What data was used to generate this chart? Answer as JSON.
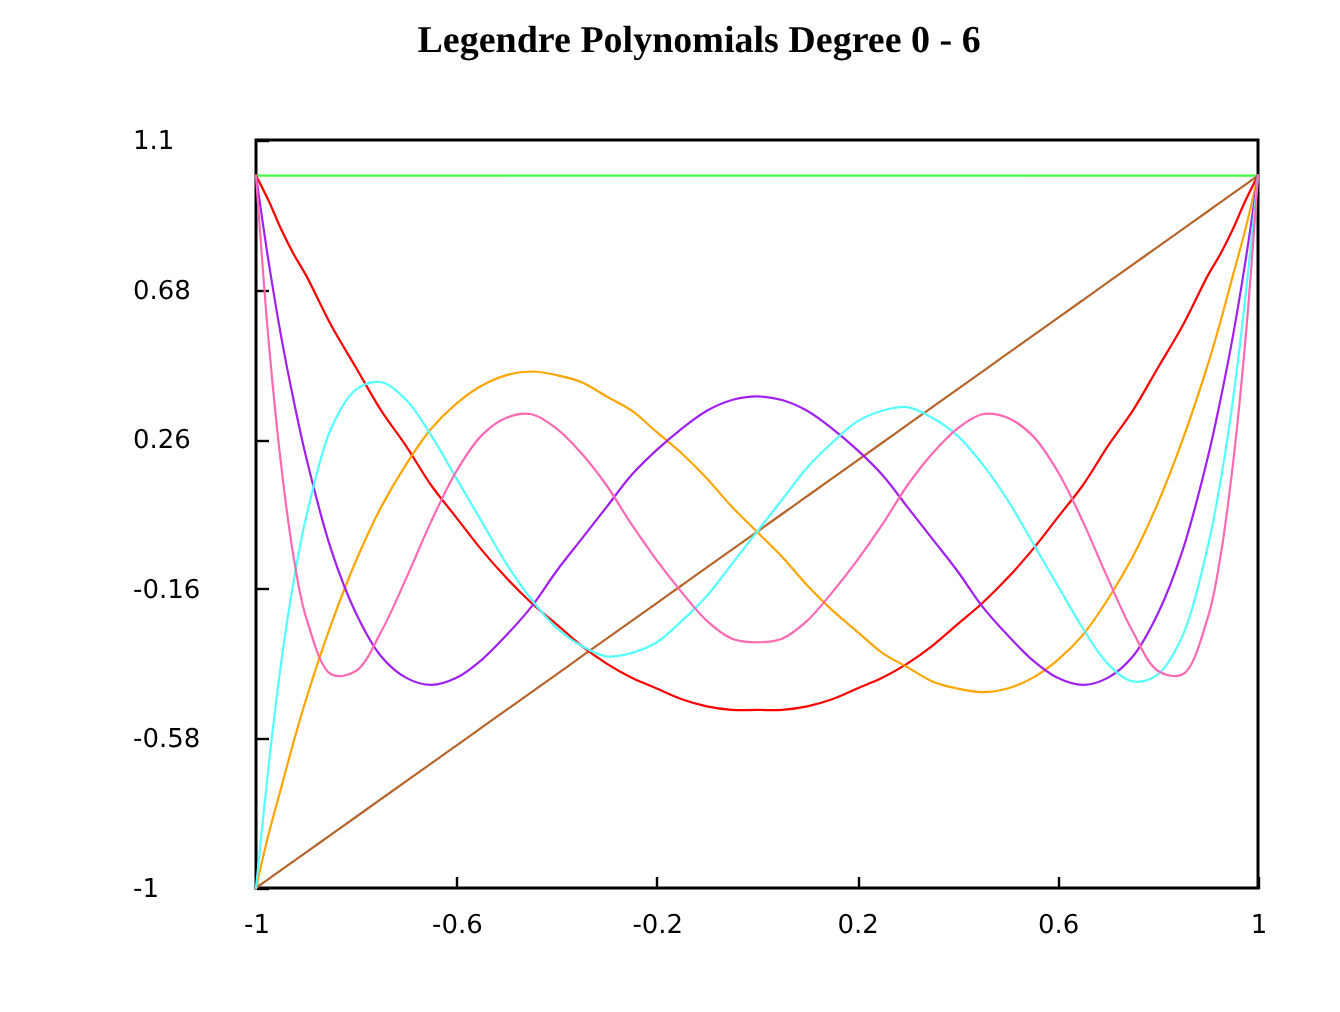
{
  "chart_data": {
    "type": "line",
    "title": "Legendre Polynomials Degree 0 - 6",
    "x": [
      -1,
      -0.975,
      -0.95,
      -0.925,
      -0.9,
      -0.85,
      -0.8,
      -0.75,
      -0.7,
      -0.65,
      -0.6,
      -0.55,
      -0.5,
      -0.45,
      -0.4,
      -0.35,
      -0.3,
      -0.25,
      -0.2,
      -0.15,
      -0.1,
      -0.05,
      0,
      0.05,
      0.1,
      0.15,
      0.2,
      0.25,
      0.3,
      0.35,
      0.4,
      0.45,
      0.5,
      0.55,
      0.6,
      0.65,
      0.7,
      0.75,
      0.8,
      0.85,
      0.9,
      0.925,
      0.95,
      0.975,
      1
    ],
    "series": [
      {
        "color": "#40ff40",
        "values": [
          1,
          1,
          1,
          1,
          1,
          1,
          1,
          1,
          1,
          1,
          1,
          1,
          1,
          1,
          1,
          1,
          1,
          1,
          1,
          1,
          1,
          1,
          1,
          1,
          1,
          1,
          1,
          1,
          1,
          1,
          1,
          1,
          1,
          1,
          1,
          1,
          1,
          1,
          1,
          1,
          1,
          1,
          1,
          1,
          1
        ]
      },
      {
        "color": "#b5652b",
        "values": [
          -1,
          -0.975,
          -0.95,
          -0.925,
          -0.9,
          -0.85,
          -0.8,
          -0.75,
          -0.7,
          -0.65,
          -0.6,
          -0.55,
          -0.5,
          -0.45,
          -0.4,
          -0.35,
          -0.3,
          -0.25,
          -0.2,
          -0.15,
          -0.1,
          -0.05,
          0,
          0.05,
          0.1,
          0.15,
          0.2,
          0.25,
          0.3,
          0.35,
          0.4,
          0.45,
          0.5,
          0.55,
          0.6,
          0.65,
          0.7,
          0.75,
          0.8,
          0.85,
          0.9,
          0.925,
          0.95,
          0.975,
          1
        ]
      },
      {
        "color": "#ff0000",
        "values": [
          1,
          0.93,
          0.85,
          0.78,
          0.72,
          0.58,
          0.46,
          0.34,
          0.24,
          0.13,
          0.04,
          -0.05,
          -0.13,
          -0.2,
          -0.26,
          -0.32,
          -0.37,
          -0.41,
          -0.44,
          -0.47,
          -0.49,
          -0.5,
          -0.5,
          -0.5,
          -0.49,
          -0.47,
          -0.44,
          -0.41,
          -0.37,
          -0.32,
          -0.26,
          -0.2,
          -0.13,
          -0.05,
          0.04,
          0.13,
          0.24,
          0.34,
          0.46,
          0.58,
          0.72,
          0.78,
          0.85,
          0.93,
          1
        ]
      },
      {
        "color": "#ffa500",
        "values": [
          -1,
          -0.85,
          -0.72,
          -0.59,
          -0.47,
          -0.26,
          -0.08,
          0.07,
          0.19,
          0.29,
          0.36,
          0.41,
          0.44,
          0.45,
          0.44,
          0.42,
          0.38,
          0.34,
          0.28,
          0.22,
          0.15,
          0.07,
          0,
          -0.07,
          -0.15,
          -0.22,
          -0.28,
          -0.34,
          -0.38,
          -0.42,
          -0.44,
          -0.45,
          -0.44,
          -0.41,
          -0.36,
          -0.29,
          -0.19,
          -0.07,
          0.08,
          0.26,
          0.47,
          0.59,
          0.72,
          0.85,
          1
        ]
      },
      {
        "color": "#a020f0",
        "values": [
          1,
          0.76,
          0.55,
          0.37,
          0.21,
          -0.05,
          -0.23,
          -0.35,
          -0.41,
          -0.43,
          -0.41,
          -0.36,
          -0.29,
          -0.21,
          -0.11,
          -0.02,
          0.07,
          0.16,
          0.23,
          0.29,
          0.34,
          0.37,
          0.38,
          0.37,
          0.34,
          0.29,
          0.23,
          0.16,
          0.07,
          -0.02,
          -0.11,
          -0.21,
          -0.29,
          -0.36,
          -0.41,
          -0.43,
          -0.41,
          -0.35,
          -0.23,
          -0.05,
          0.21,
          0.37,
          0.55,
          0.76,
          1
        ]
      },
      {
        "color": "#55ffff",
        "values": [
          -1,
          -0.66,
          -0.37,
          -0.14,
          0.04,
          0.29,
          0.4,
          0.42,
          0.37,
          0.27,
          0.15,
          0.03,
          -0.09,
          -0.19,
          -0.27,
          -0.32,
          -0.35,
          -0.34,
          -0.31,
          -0.25,
          -0.18,
          -0.09,
          0,
          0.09,
          0.18,
          0.25,
          0.31,
          0.34,
          0.35,
          0.32,
          0.27,
          0.19,
          0.09,
          -0.03,
          -0.15,
          -0.27,
          -0.37,
          -0.42,
          -0.4,
          -0.29,
          -0.04,
          0.14,
          0.37,
          0.66,
          1
        ]
      },
      {
        "color": "#ff69b4",
        "values": [
          1,
          0.54,
          0.19,
          -0.07,
          -0.24,
          -0.4,
          -0.39,
          -0.28,
          -0.13,
          0.03,
          0.17,
          0.27,
          0.32,
          0.33,
          0.29,
          0.22,
          0.13,
          0.02,
          -0.08,
          -0.17,
          -0.25,
          -0.3,
          -0.31,
          -0.3,
          -0.25,
          -0.17,
          -0.08,
          0.02,
          0.13,
          0.22,
          0.29,
          0.33,
          0.32,
          0.27,
          0.17,
          0.03,
          -0.13,
          -0.28,
          -0.39,
          -0.4,
          -0.24,
          -0.07,
          0.19,
          0.54,
          1
        ]
      }
    ],
    "xlim": [
      -1,
      1
    ],
    "ylim": [
      -1,
      1.1
    ],
    "xticks": [
      -1,
      -0.6,
      -0.2,
      0.2,
      0.6,
      1
    ],
    "yticks": [
      -1,
      -0.58,
      -0.16,
      0.26,
      0.68,
      1.1
    ],
    "grid": false,
    "legend": false
  }
}
